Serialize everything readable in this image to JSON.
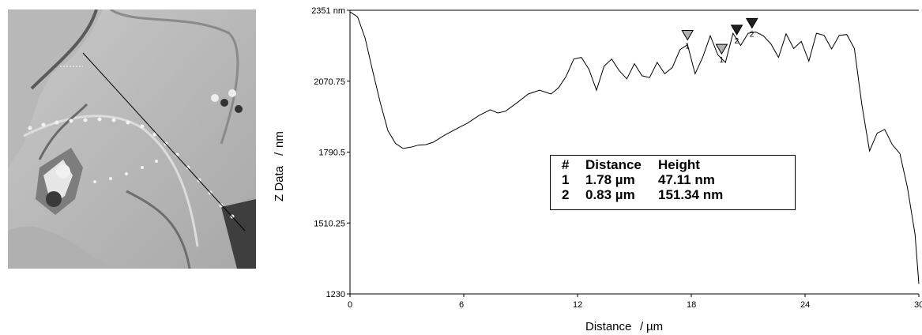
{
  "colors": {
    "plot": "#000000",
    "marker_light": "#b0b0b0",
    "marker_dark": "#202020",
    "background": "#ffffff"
  },
  "chart_data": {
    "type": "line",
    "xlabel": "Distance",
    "xlabel_unit": "µm",
    "ylabel": "Z Data",
    "ylabel_unit": "nm",
    "xlim": [
      0,
      30
    ],
    "ylim": [
      1230,
      2351
    ],
    "x_ticks": [
      "0",
      "6",
      "12",
      "18",
      "24",
      "30 µm"
    ],
    "y_ticks": [
      "1230",
      "1510.25",
      "1790.5",
      "2070.75",
      "2351 nm"
    ],
    "grid": false,
    "series": [
      {
        "x": [
          0,
          0.4,
          0.8,
          1.2,
          1.6,
          2.0,
          2.4,
          2.8,
          3.2,
          3.6,
          4.0,
          4.4,
          5.0,
          5.6,
          6.2,
          6.8,
          7.4,
          7.8,
          8.2,
          8.8,
          9.4,
          10.0,
          10.6,
          11.0,
          11.4,
          11.8,
          12.2,
          12.6,
          13.0,
          13.4,
          13.8,
          14.2,
          14.6,
          15.0,
          15.4,
          15.8,
          16.2,
          16.6,
          17.0,
          17.4,
          17.8,
          18.2,
          18.6,
          19.0,
          19.4,
          19.8,
          20.2,
          20.6,
          21.0,
          21.4,
          21.8,
          22.2,
          22.6,
          23.0,
          23.4,
          23.8,
          24.2,
          24.6,
          25.0,
          25.4,
          25.8,
          26.2,
          26.6,
          27.0,
          27.4,
          27.8,
          28.2,
          28.6,
          29.0,
          29.4,
          29.8,
          30.0
        ],
        "y": [
          2345,
          2325,
          2240,
          2110,
          1985,
          1875,
          1825,
          1805,
          1810,
          1818,
          1820,
          1830,
          1858,
          1882,
          1905,
          1935,
          1958,
          1945,
          1952,
          1985,
          2020,
          2035,
          2020,
          2045,
          2090,
          2158,
          2165,
          2118,
          2035,
          2130,
          2158,
          2112,
          2080,
          2140,
          2092,
          2085,
          2145,
          2100,
          2125,
          2195,
          2215,
          2100,
          2165,
          2250,
          2175,
          2145,
          2260,
          2212,
          2260,
          2265,
          2250,
          2218,
          2165,
          2258,
          2200,
          2228,
          2150,
          2260,
          2252,
          2198,
          2252,
          2255,
          2200,
          1975,
          1795,
          1865,
          1880,
          1820,
          1785,
          1650,
          1465,
          1270
        ]
      }
    ],
    "markers": [
      {
        "label": "1",
        "x": 17.8,
        "shade": "light"
      },
      {
        "label": "1",
        "x": 19.6,
        "shade": "light"
      },
      {
        "label": "2",
        "x": 20.4,
        "shade": "dark"
      },
      {
        "label": "2",
        "x": 21.2,
        "shade": "dark"
      }
    ],
    "table": {
      "headers": [
        "#",
        "Distance",
        "Height"
      ],
      "rows": [
        [
          "1",
          "1.78 µm",
          "47.11  nm"
        ],
        [
          "2",
          "0.83 µm",
          "151.34  nm"
        ]
      ]
    }
  }
}
